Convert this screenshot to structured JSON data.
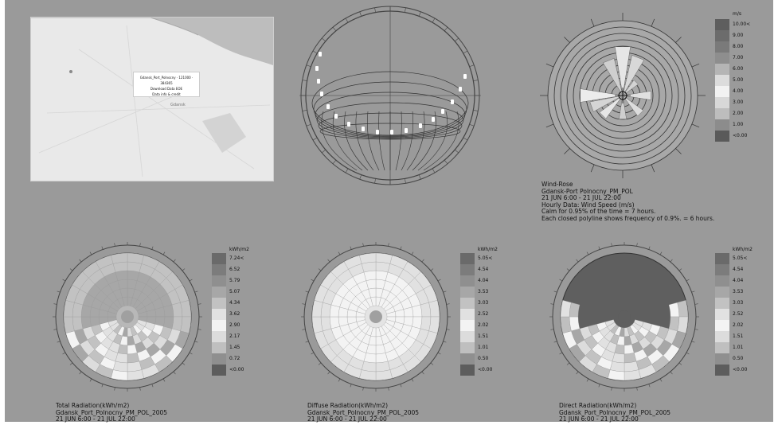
{
  "map": {
    "popup": {
      "line1": "Gdansk_Port_Polnocny · 121000 · 384365",
      "line2": "Download Data EOE",
      "line3": "Data info & credit"
    },
    "city_label": "Gdansk"
  },
  "windrose": {
    "caption": [
      "Wind-Rose",
      "Gdansk-Port Polnocny_PM_POL",
      "21 JUN 6:00 - 21 JUL 22:00",
      "Hourly Data: Wind Speed (m/s)",
      "Calm for 0.95% of the time = 7 hours.",
      "Each closed polyline shows frequency of 0.9%. = 6 hours."
    ],
    "legend": {
      "unit": "m/s",
      "labels": [
        "10.00<",
        "9.00",
        "8.00",
        "7.00",
        "6.00",
        "5.00",
        "4.00",
        "3.00",
        "2.00",
        "1.00",
        "<0.00"
      ],
      "colors": [
        "#5e5e5e",
        "#6c6c6c",
        "#7a7a7a",
        "#8e8e8e",
        "#b5b5b5",
        "#dcdcdc",
        "#f2f2f2",
        "#d8d8d8",
        "#bdbdbd",
        "#8c8c8c",
        "#5a5a5a"
      ]
    }
  },
  "radiation": [
    {
      "id": "total",
      "caption": [
        "Total Radiation(kWh/m2)",
        "Gdansk_Port_Polnocny_PM_POL_2005",
        "21 JUN 6:00 - 21 JUL 22:00"
      ],
      "unit": "kWh/m2",
      "labels": [
        "7.24<",
        "6.52",
        "5.79",
        "5.07",
        "4.34",
        "3.62",
        "2.90",
        "2.17",
        "1.45",
        "0.72",
        "<0.00"
      ],
      "colors": [
        "#6a6a6a",
        "#7c7c7c",
        "#8f8f8f",
        "#a7a7a7",
        "#c2c2c2",
        "#e1e1e1",
        "#f3f3f3",
        "#dcdcdc",
        "#bfbfbf",
        "#8f8f8f",
        "#5d5d5d"
      ],
      "disk_fill": "#b8b8b8"
    },
    {
      "id": "diffuse",
      "caption": [
        "Diffuse Radiation(kWh/m2)",
        "Gdansk_Port_Polnocny_PM_POL_2005",
        "21 JUN 6:00 - 21 JUL 22:00"
      ],
      "unit": "kWh/m2",
      "labels": [
        "5.05<",
        "4.54",
        "4.04",
        "3.53",
        "3.03",
        "2.52",
        "2.02",
        "1.51",
        "1.01",
        "0.50",
        "<0.00"
      ],
      "colors": [
        "#6a6a6a",
        "#7c7c7c",
        "#8f8f8f",
        "#a7a7a7",
        "#c2c2c2",
        "#e1e1e1",
        "#f3f3f3",
        "#dcdcdc",
        "#bfbfbf",
        "#8f8f8f",
        "#5d5d5d"
      ],
      "disk_fill": "#e4e4e4"
    },
    {
      "id": "direct",
      "caption": [
        "Direct Radiation(kWh/m2)",
        "Gdansk_Port_Polnocny_PM_POL_2005",
        "21 JUN 6:00 - 21 JUL 22:00"
      ],
      "unit": "kWh/m2",
      "labels": [
        "5.05<",
        "4.54",
        "4.04",
        "3.53",
        "3.03",
        "2.52",
        "2.02",
        "1.51",
        "1.01",
        "0.50",
        "<0.00"
      ],
      "colors": [
        "#6a6a6a",
        "#7c7c7c",
        "#8f8f8f",
        "#a7a7a7",
        "#c2c2c2",
        "#e1e1e1",
        "#f3f3f3",
        "#dcdcdc",
        "#bfbfbf",
        "#8f8f8f",
        "#5d5d5d"
      ],
      "disk_fill": "#5f5f5f"
    }
  ]
}
